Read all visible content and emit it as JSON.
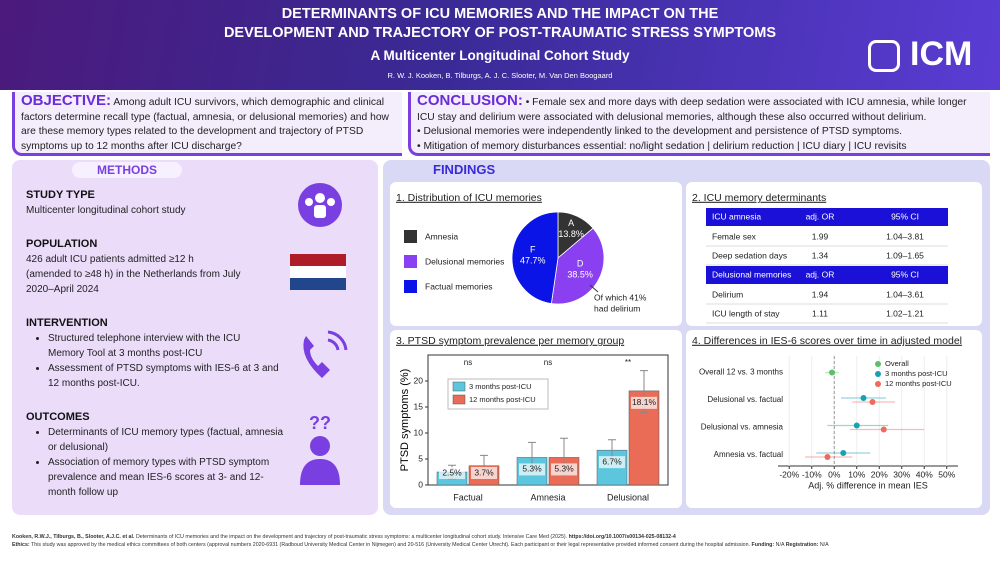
{
  "header": {
    "title_line1": "DETERMINANTS OF ICU MEMORIES AND THE IMPACT ON THE",
    "title_line2": "DEVELOPMENT AND TRAJECTORY OF POST-TRAUMATIC STRESS SYMPTOMS",
    "subtitle": "A Multicenter Longitudinal Cohort Study",
    "authors": "R. W. J. Kooken, B. Tilburgs, A. J. C. Slooter, M. Van Den Boogaard",
    "logo": "ICM"
  },
  "objective": {
    "label": "OBJECTIVE:",
    "text": "Among adult ICU survivors, which demographic and clinical factors determine recall type (factual, amnesia, or delusional memories) and how are these memory types related to the development and trajectory of PTSD symptoms up to 12 months after ICU discharge?"
  },
  "conclusion": {
    "label": "CONCLUSION:",
    "bullets": [
      "Female sex and more days with deep sedation were associated with ICU amnesia, while longer ICU stay and delirium were associated with delusional memories, although these also occurred without delirium.",
      "Delusional memories were independently linked to the development and persistence of PTSD symptoms.",
      "Mitigation of memory disturbances essential: no/light sedation | delirium reduction | ICU diary | ICU revisits"
    ]
  },
  "methods": {
    "title": "METHODS",
    "study_type": {
      "heading": "STUDY TYPE",
      "text": "Multicenter longitudinal cohort study"
    },
    "population": {
      "heading": "POPULATION",
      "text": "426 adult ICU patients admitted ≥12 h (amended to ≥48 h) in the Netherlands from July 2020–April 2024"
    },
    "intervention": {
      "heading": "INTERVENTION",
      "bullets": [
        "Structured telephone interview with the ICU Memory Tool at 3 months post-ICU",
        "Assessment of PTSD symptoms with IES-6 at 3 and 12 months post-ICU."
      ]
    },
    "outcomes": {
      "heading": "OUTCOMES",
      "bullets": [
        "Determinants of ICU memory types (factual, amnesia or delusional)",
        "Association of memory types with PTSD symptom prevalence and mean IES-6 scores at 3- and 12-month follow up"
      ]
    }
  },
  "findings": {
    "title": "FINDINGS"
  },
  "determinants_table": {
    "title": "2. ICU memory determinants",
    "groups": [
      {
        "header": [
          "ICU amnesia",
          "adj. OR",
          "95% CI"
        ],
        "rows": [
          [
            "Female sex",
            "1.99",
            "1.04–3.81"
          ],
          [
            "Deep sedation days",
            "1.34",
            "1.09–1.65"
          ]
        ]
      },
      {
        "header": [
          "Delusional memories",
          "adj. OR",
          "95% CI"
        ],
        "rows": [
          [
            "Delirium",
            "1.94",
            "1.04–3.61"
          ],
          [
            "ICU length of stay",
            "1.11",
            "1.02–1.21"
          ]
        ]
      }
    ]
  },
  "chart_data": [
    {
      "type": "pie",
      "title": "1. Distribution of ICU memories",
      "categories": [
        "Amnesia",
        "Delusional memories",
        "Factual memories"
      ],
      "slice_labels": [
        "A",
        "D",
        "F"
      ],
      "values": [
        13.8,
        38.5,
        47.7
      ],
      "value_labels": [
        "13.8%",
        "38.5%",
        "47.7%"
      ],
      "colors": [
        "#333333",
        "#8a3ff0",
        "#0a14e6"
      ],
      "annotation_lines": [
        "Of which 41%",
        "had delirium"
      ]
    },
    {
      "type": "bar",
      "title": "3. PTSD symptom prevalence per memory group",
      "y_label": "PTSD symptoms (%)",
      "categories": [
        "Factual",
        "Amnesia",
        "Delusional"
      ],
      "ylim": [
        0,
        25
      ],
      "yticks": [
        0,
        5,
        10,
        15,
        20
      ],
      "significance": [
        "ns",
        "ns",
        "**"
      ],
      "series": [
        {
          "name": "3 months post-ICU",
          "color": "#5bc6de",
          "values": [
            2.5,
            5.3,
            6.7
          ],
          "value_labels": [
            "2.5%",
            "5.3%",
            "6.7%"
          ],
          "lower": [
            1.2,
            2.7,
            4.7
          ],
          "upper": [
            3.8,
            8.2,
            8.7
          ]
        },
        {
          "name": "12 months post-ICU",
          "color": "#ea6c57",
          "values": [
            3.7,
            5.3,
            18.1
          ],
          "value_labels": [
            "3.7%",
            "5.3%",
            "18.1%"
          ],
          "lower": [
            2.2,
            1.8,
            14
          ],
          "upper": [
            5.7,
            9,
            22
          ]
        }
      ]
    },
    {
      "type": "forest",
      "title": "4. Differences in IES-6 scores over time in adjusted model",
      "x_label": "Adj. % difference in mean IES",
      "categories": [
        "Overall 12 vs. 3 months",
        "Delusional vs. factual",
        "Delusional vs. amnesia",
        "Amnesia vs. factual"
      ],
      "xlim": [
        -25,
        55
      ],
      "xticks": [
        {
          "value": -20,
          "label": "-20%"
        },
        {
          "value": -10,
          "label": "-10%"
        },
        {
          "value": 0,
          "label": "0%"
        },
        {
          "value": 10,
          "label": "10%"
        },
        {
          "value": 20,
          "label": "20%"
        },
        {
          "value": 30,
          "label": "30%"
        },
        {
          "value": 40,
          "label": "40%"
        },
        {
          "value": 50,
          "label": "50%"
        }
      ],
      "series": [
        {
          "name": "Overall",
          "color": "#5cc06a",
          "values": [
            -1,
            null,
            null,
            null
          ],
          "lower": [
            -4,
            null,
            null,
            null
          ],
          "upper": [
            2,
            null,
            null,
            null
          ]
        },
        {
          "name": "3 months post-ICU",
          "color": "#17a2b3",
          "values": [
            null,
            13,
            10,
            4
          ],
          "lower": [
            null,
            3,
            -3,
            -8
          ],
          "upper": [
            null,
            23,
            24,
            16
          ]
        },
        {
          "name": "12 months post-ICU",
          "color": "#ee6a5e",
          "values": [
            null,
            17,
            22,
            -3
          ],
          "lower": [
            null,
            8,
            7,
            -13
          ],
          "upper": [
            null,
            27,
            40,
            8
          ]
        }
      ]
    }
  ],
  "footer": {
    "authors": "Kooken, R.W.J., Tilburgs, B., Slooter, A.J.C. et al.",
    "citation": "Determinants of ICU memories and the impact on the development and trajectory of post-traumatic stress symptoms: a multicenter longitudinal cohort study. Intensive Care Med (2025).",
    "doi": "https://doi.org/10.1007/s00134-025-08132-4",
    "ethics_label": "Ethics:",
    "ethics": "This study was approved by the medical ethics committees of both centers (approval numbers 2020-6931 (Radboud University Medical Center in Nijmegen) and 20-516 (University Medical Center Utrecht). Each participant or their legal representative provided informed consent during the hospital admission.",
    "funding_label": "Funding:",
    "funding": "N/A",
    "registration_label": "Registration:",
    "registration": "N/A"
  }
}
